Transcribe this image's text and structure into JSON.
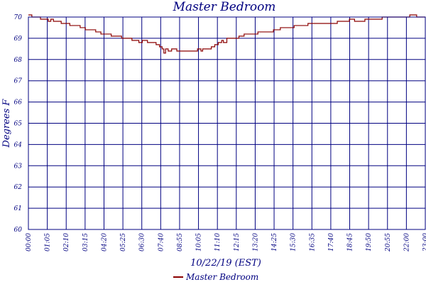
{
  "chart_data": {
    "type": "line",
    "title": "Master Bedroom",
    "xlabel": "10/22/19 (EST)",
    "ylabel": "Degrees F",
    "ylim": [
      60,
      70
    ],
    "yticks": [
      "60",
      "61",
      "62",
      "63",
      "64",
      "65",
      "66",
      "67",
      "68",
      "69",
      "70"
    ],
    "xticks": [
      "00:00",
      "01:05",
      "02:10",
      "03:15",
      "04:20",
      "05:25",
      "06:30",
      "07:40",
      "08:55",
      "10:05",
      "11:10",
      "12:15",
      "13:20",
      "14:25",
      "15:30",
      "16:35",
      "17:40",
      "18:45",
      "19:50",
      "20:55",
      "22:00",
      "23:00"
    ],
    "grid": true,
    "legend": "bottom-center",
    "series": [
      {
        "name": "Master Bedroom",
        "color": "#8b0000",
        "points": [
          [
            0,
            70.1
          ],
          [
            0.2,
            70.0
          ],
          [
            0.35,
            70.0
          ],
          [
            0.5,
            70.0
          ],
          [
            0.7,
            69.9
          ],
          [
            1.0,
            69.9
          ],
          [
            1.15,
            69.8
          ],
          [
            1.3,
            69.9
          ],
          [
            1.45,
            69.8
          ],
          [
            1.6,
            69.8
          ],
          [
            1.9,
            69.7
          ],
          [
            2.1,
            69.7
          ],
          [
            2.4,
            69.6
          ],
          [
            2.7,
            69.6
          ],
          [
            3.0,
            69.5
          ],
          [
            3.3,
            69.4
          ],
          [
            3.6,
            69.4
          ],
          [
            3.9,
            69.3
          ],
          [
            4.2,
            69.2
          ],
          [
            4.5,
            69.2
          ],
          [
            4.8,
            69.1
          ],
          [
            5.1,
            69.1
          ],
          [
            5.4,
            69.0
          ],
          [
            5.7,
            69.0
          ],
          [
            6.0,
            68.9
          ],
          [
            6.2,
            68.9
          ],
          [
            6.4,
            68.8
          ],
          [
            6.6,
            68.9
          ],
          [
            6.9,
            68.8
          ],
          [
            7.2,
            68.8
          ],
          [
            7.4,
            68.7
          ],
          [
            7.6,
            68.6
          ],
          [
            7.75,
            68.5
          ],
          [
            7.85,
            68.3
          ],
          [
            7.95,
            68.5
          ],
          [
            8.1,
            68.4
          ],
          [
            8.3,
            68.5
          ],
          [
            8.6,
            68.4
          ],
          [
            8.9,
            68.4
          ],
          [
            9.2,
            68.4
          ],
          [
            9.5,
            68.4
          ],
          [
            9.8,
            68.5
          ],
          [
            10.0,
            68.4
          ],
          [
            10.1,
            68.5
          ],
          [
            10.4,
            68.5
          ],
          [
            10.6,
            68.6
          ],
          [
            10.8,
            68.7
          ],
          [
            11.0,
            68.8
          ],
          [
            11.2,
            68.9
          ],
          [
            11.3,
            68.8
          ],
          [
            11.5,
            69.0
          ],
          [
            11.7,
            69.0
          ],
          [
            11.9,
            69.0
          ],
          [
            12.2,
            69.1
          ],
          [
            12.5,
            69.2
          ],
          [
            12.9,
            69.2
          ],
          [
            13.3,
            69.3
          ],
          [
            13.7,
            69.3
          ],
          [
            14.2,
            69.4
          ],
          [
            14.6,
            69.5
          ],
          [
            15.0,
            69.5
          ],
          [
            15.4,
            69.6
          ],
          [
            15.8,
            69.6
          ],
          [
            16.2,
            69.7
          ],
          [
            16.6,
            69.7
          ],
          [
            17.0,
            69.7
          ],
          [
            17.5,
            69.7
          ],
          [
            17.9,
            69.8
          ],
          [
            18.3,
            69.8
          ],
          [
            18.6,
            69.9
          ],
          [
            18.9,
            69.8
          ],
          [
            19.2,
            69.8
          ],
          [
            19.5,
            69.9
          ],
          [
            19.8,
            69.9
          ],
          [
            20.1,
            69.9
          ],
          [
            20.5,
            70.0
          ],
          [
            20.9,
            70.0
          ],
          [
            21.3,
            70.0
          ],
          [
            21.6,
            70.0
          ],
          [
            21.9,
            70.0
          ],
          [
            22.1,
            70.1
          ],
          [
            22.3,
            70.1
          ],
          [
            22.5,
            70.0
          ],
          [
            22.8,
            70.0
          ],
          [
            23.0,
            70.0
          ]
        ]
      }
    ]
  }
}
